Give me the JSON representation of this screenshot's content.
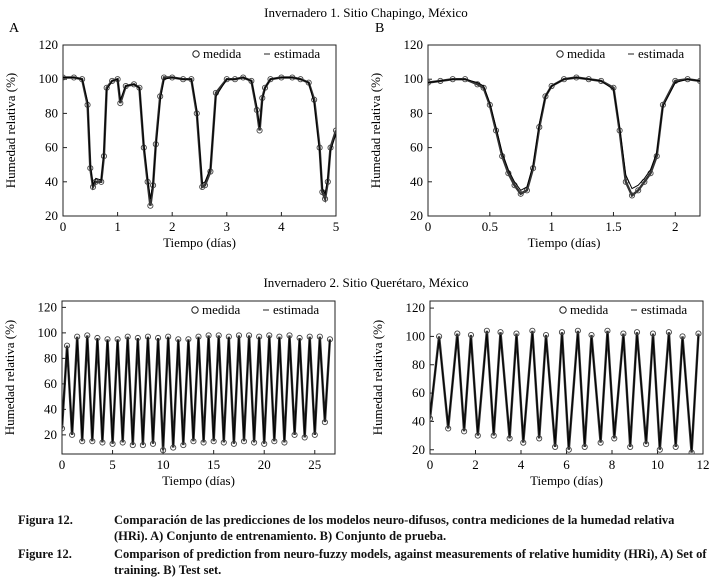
{
  "group_titles": [
    "Invernadero 1. Sitio Chapingo, México",
    "Invernadero 2. Sitio Querétaro, México"
  ],
  "panel_letters": [
    "A",
    "B"
  ],
  "legend": {
    "measured": "medida",
    "estimated": "estimada"
  },
  "captions": [
    {
      "label": "Figura 12.",
      "text": "Comparación de las predicciones de los modelos neuro-difusos, contra mediciones de la humedad relativa (HRi). A) Conjunto de entrenamiento. B) Conjunto de prueba."
    },
    {
      "label": "Figure 12.",
      "text": "Comparison of prediction from neuro-fuzzy models, against measurements of relative humidity (HRi), A) Set of training. B) Test set."
    }
  ],
  "chart_data": [
    {
      "id": "invernadero1-A",
      "type": "line",
      "letter": "A",
      "xlabel": "Tiempo (días)",
      "ylabel": "Humedad relativa (%)",
      "xlim": [
        0,
        5
      ],
      "ylim": [
        20,
        120
      ],
      "xticks": [
        0,
        1,
        2,
        3,
        4,
        5
      ],
      "yticks": [
        20,
        40,
        60,
        80,
        100,
        120
      ],
      "series": [
        {
          "name": "medida",
          "marker": "circle",
          "x": [
            0,
            0.2,
            0.35,
            0.45,
            0.5,
            0.55,
            0.6,
            0.7,
            0.75,
            0.8,
            0.9,
            1.0,
            1.05,
            1.15,
            1.3,
            1.4,
            1.48,
            1.55,
            1.6,
            1.65,
            1.7,
            1.78,
            1.85,
            2.0,
            2.2,
            2.35,
            2.45,
            2.55,
            2.6,
            2.7,
            2.8,
            3.0,
            3.15,
            3.3,
            3.45,
            3.55,
            3.6,
            3.65,
            3.7,
            3.8,
            4.0,
            4.2,
            4.35,
            4.5,
            4.6,
            4.7,
            4.75,
            4.8,
            4.85,
            4.9,
            5.0
          ],
          "y": [
            101,
            101,
            100,
            85,
            48,
            37,
            40,
            40,
            55,
            95,
            99,
            100,
            86,
            96,
            97,
            95,
            60,
            40,
            26,
            38,
            62,
            90,
            101,
            101,
            100,
            100,
            80,
            37,
            38,
            46,
            92,
            100,
            100,
            101,
            99,
            82,
            70,
            89,
            95,
            100,
            101,
            101,
            100,
            98,
            88,
            60,
            34,
            30,
            40,
            60,
            70
          ]
        },
        {
          "name": "estimada",
          "marker": "line",
          "x": [
            0,
            0.2,
            0.35,
            0.45,
            0.5,
            0.55,
            0.6,
            0.7,
            0.75,
            0.8,
            0.9,
            1.0,
            1.05,
            1.15,
            1.3,
            1.4,
            1.48,
            1.55,
            1.6,
            1.65,
            1.7,
            1.78,
            1.85,
            2.0,
            2.2,
            2.35,
            2.45,
            2.55,
            2.6,
            2.7,
            2.8,
            3.0,
            3.15,
            3.3,
            3.45,
            3.55,
            3.6,
            3.65,
            3.7,
            3.8,
            4.0,
            4.2,
            4.35,
            4.5,
            4.6,
            4.7,
            4.75,
            4.8,
            4.85,
            4.9,
            5.0
          ],
          "y": [
            101,
            101,
            100,
            87,
            50,
            38,
            42,
            41,
            57,
            94,
            99,
            100,
            88,
            96,
            97,
            95,
            62,
            42,
            30,
            40,
            60,
            88,
            100,
            101,
            100,
            100,
            82,
            39,
            40,
            48,
            90,
            100,
            100,
            101,
            99,
            84,
            72,
            88,
            95,
            100,
            101,
            101,
            100,
            98,
            86,
            58,
            36,
            33,
            42,
            58,
            68
          ]
        }
      ]
    },
    {
      "id": "invernadero1-B",
      "type": "line",
      "letter": "B",
      "xlabel": "Tiempo (días)",
      "ylabel": "Humedad relativa (%)",
      "xlim": [
        0,
        2.2
      ],
      "ylim": [
        20,
        120
      ],
      "xticks": [
        0,
        0.5,
        1,
        1.5,
        2
      ],
      "yticks": [
        20,
        40,
        60,
        80,
        100,
        120
      ],
      "series": [
        {
          "name": "medida",
          "marker": "circle",
          "x": [
            0,
            0.1,
            0.2,
            0.3,
            0.4,
            0.45,
            0.5,
            0.55,
            0.6,
            0.65,
            0.7,
            0.75,
            0.8,
            0.85,
            0.9,
            0.95,
            1.0,
            1.1,
            1.2,
            1.3,
            1.4,
            1.5,
            1.55,
            1.6,
            1.65,
            1.7,
            1.75,
            1.8,
            1.85,
            1.9,
            2.0,
            2.1,
            2.2
          ],
          "y": [
            98,
            99,
            100,
            100,
            97,
            95,
            85,
            70,
            55,
            45,
            38,
            33,
            35,
            48,
            72,
            90,
            96,
            100,
            101,
            100,
            99,
            95,
            70,
            40,
            32,
            35,
            40,
            45,
            55,
            85,
            99,
            100,
            99
          ]
        },
        {
          "name": "estimada",
          "marker": "line",
          "x": [
            0,
            0.1,
            0.2,
            0.3,
            0.4,
            0.45,
            0.5,
            0.55,
            0.6,
            0.65,
            0.7,
            0.75,
            0.8,
            0.85,
            0.9,
            0.95,
            1.0,
            1.1,
            1.2,
            1.3,
            1.4,
            1.5,
            1.55,
            1.6,
            1.65,
            1.7,
            1.75,
            1.8,
            1.85,
            1.9,
            2.0,
            2.1,
            2.2
          ],
          "y": [
            98,
            99,
            100,
            100,
            98,
            96,
            86,
            72,
            57,
            47,
            40,
            35,
            37,
            50,
            74,
            90,
            96,
            100,
            101,
            100,
            99,
            94,
            72,
            44,
            36,
            38,
            42,
            47,
            57,
            84,
            98,
            100,
            99
          ]
        }
      ]
    },
    {
      "id": "invernadero2-A",
      "type": "line",
      "letter": "",
      "xlabel": "Tiempo (días)",
      "ylabel": "Humedad relativa (%)",
      "xlim": [
        0,
        27
      ],
      "ylim": [
        5,
        125
      ],
      "xticks": [
        0,
        5,
        10,
        15,
        20,
        25
      ],
      "yticks": [
        20,
        40,
        60,
        80,
        100,
        120
      ],
      "series": [
        {
          "name": "medida",
          "marker": "circle",
          "x": [
            0,
            0.5,
            1,
            1.5,
            2,
            2.5,
            3,
            3.5,
            4,
            4.5,
            5,
            5.5,
            6,
            6.5,
            7,
            7.5,
            8,
            8.5,
            9,
            9.5,
            10,
            10.5,
            11,
            11.5,
            12,
            12.5,
            13,
            13.5,
            14,
            14.5,
            15,
            15.5,
            16,
            16.5,
            17,
            17.5,
            18,
            18.5,
            19,
            19.5,
            20,
            20.5,
            21,
            21.5,
            22,
            22.5,
            23,
            23.5,
            24,
            24.5,
            25,
            25.5,
            26,
            26.5
          ],
          "y": [
            25,
            90,
            20,
            97,
            15,
            98,
            15,
            96,
            14,
            95,
            13,
            95,
            14,
            97,
            12,
            96,
            12,
            97,
            13,
            96,
            8,
            97,
            10,
            95,
            12,
            95,
            15,
            97,
            14,
            98,
            15,
            98,
            14,
            97,
            13,
            98,
            15,
            98,
            14,
            97,
            13,
            98,
            15,
            97,
            14,
            98,
            20,
            96,
            18,
            97,
            20,
            97,
            30,
            95
          ]
        },
        {
          "name": "estimada",
          "marker": "line",
          "x": [
            0,
            0.5,
            1,
            1.5,
            2,
            2.5,
            3,
            3.5,
            4,
            4.5,
            5,
            5.5,
            6,
            6.5,
            7,
            7.5,
            8,
            8.5,
            9,
            9.5,
            10,
            10.5,
            11,
            11.5,
            12,
            12.5,
            13,
            13.5,
            14,
            14.5,
            15,
            15.5,
            16,
            16.5,
            17,
            17.5,
            18,
            18.5,
            19,
            19.5,
            20,
            20.5,
            21,
            21.5,
            22,
            22.5,
            23,
            23.5,
            24,
            24.5,
            25,
            25.5,
            26,
            26.5
          ],
          "y": [
            28,
            88,
            22,
            95,
            17,
            96,
            17,
            95,
            16,
            94,
            15,
            94,
            16,
            95,
            14,
            95,
            14,
            96,
            15,
            95,
            11,
            96,
            12,
            94,
            14,
            94,
            17,
            96,
            16,
            96,
            17,
            96,
            16,
            96,
            15,
            96,
            17,
            96,
            16,
            96,
            15,
            96,
            17,
            96,
            16,
            96,
            22,
            95,
            20,
            95,
            22,
            95,
            32,
            94
          ]
        }
      ]
    },
    {
      "id": "invernadero2-B",
      "type": "line",
      "letter": "",
      "xlabel": "Tiempo (días)",
      "ylabel": "Humedad relativa (%)",
      "xlim": [
        0,
        12
      ],
      "ylim": [
        17,
        125
      ],
      "xticks": [
        0,
        2,
        4,
        6,
        8,
        10,
        12
      ],
      "yticks": [
        20,
        40,
        60,
        80,
        100,
        120
      ],
      "series": [
        {
          "name": "medida",
          "marker": "circle",
          "x": [
            0,
            0.4,
            0.8,
            1.2,
            1.5,
            1.8,
            2.1,
            2.5,
            2.8,
            3.1,
            3.5,
            3.8,
            4.1,
            4.5,
            4.8,
            5.1,
            5.5,
            5.8,
            6.1,
            6.5,
            6.8,
            7.1,
            7.5,
            7.8,
            8.1,
            8.5,
            8.8,
            9.1,
            9.5,
            9.8,
            10.1,
            10.5,
            10.8,
            11.1,
            11.5,
            11.8
          ],
          "y": [
            42,
            100,
            35,
            102,
            33,
            101,
            30,
            104,
            30,
            103,
            28,
            102,
            25,
            104,
            28,
            101,
            22,
            103,
            20,
            104,
            22,
            101,
            25,
            104,
            28,
            102,
            22,
            103,
            24,
            102,
            20,
            103,
            22,
            100,
            18,
            102
          ]
        },
        {
          "name": "estimada",
          "marker": "line",
          "x": [
            0,
            0.4,
            0.8,
            1.2,
            1.5,
            1.8,
            2.1,
            2.5,
            2.8,
            3.1,
            3.5,
            3.8,
            4.1,
            4.5,
            4.8,
            5.1,
            5.5,
            5.8,
            6.1,
            6.5,
            6.8,
            7.1,
            7.5,
            7.8,
            8.1,
            8.5,
            8.8,
            9.1,
            9.5,
            9.8,
            10.1,
            10.5,
            10.8,
            11.1,
            11.5,
            11.8
          ],
          "y": [
            45,
            98,
            37,
            100,
            35,
            99,
            32,
            102,
            32,
            101,
            30,
            100,
            27,
            102,
            30,
            99,
            24,
            101,
            22,
            102,
            24,
            99,
            27,
            102,
            30,
            100,
            24,
            101,
            26,
            100,
            22,
            101,
            24,
            98,
            20,
            100
          ]
        }
      ]
    }
  ]
}
